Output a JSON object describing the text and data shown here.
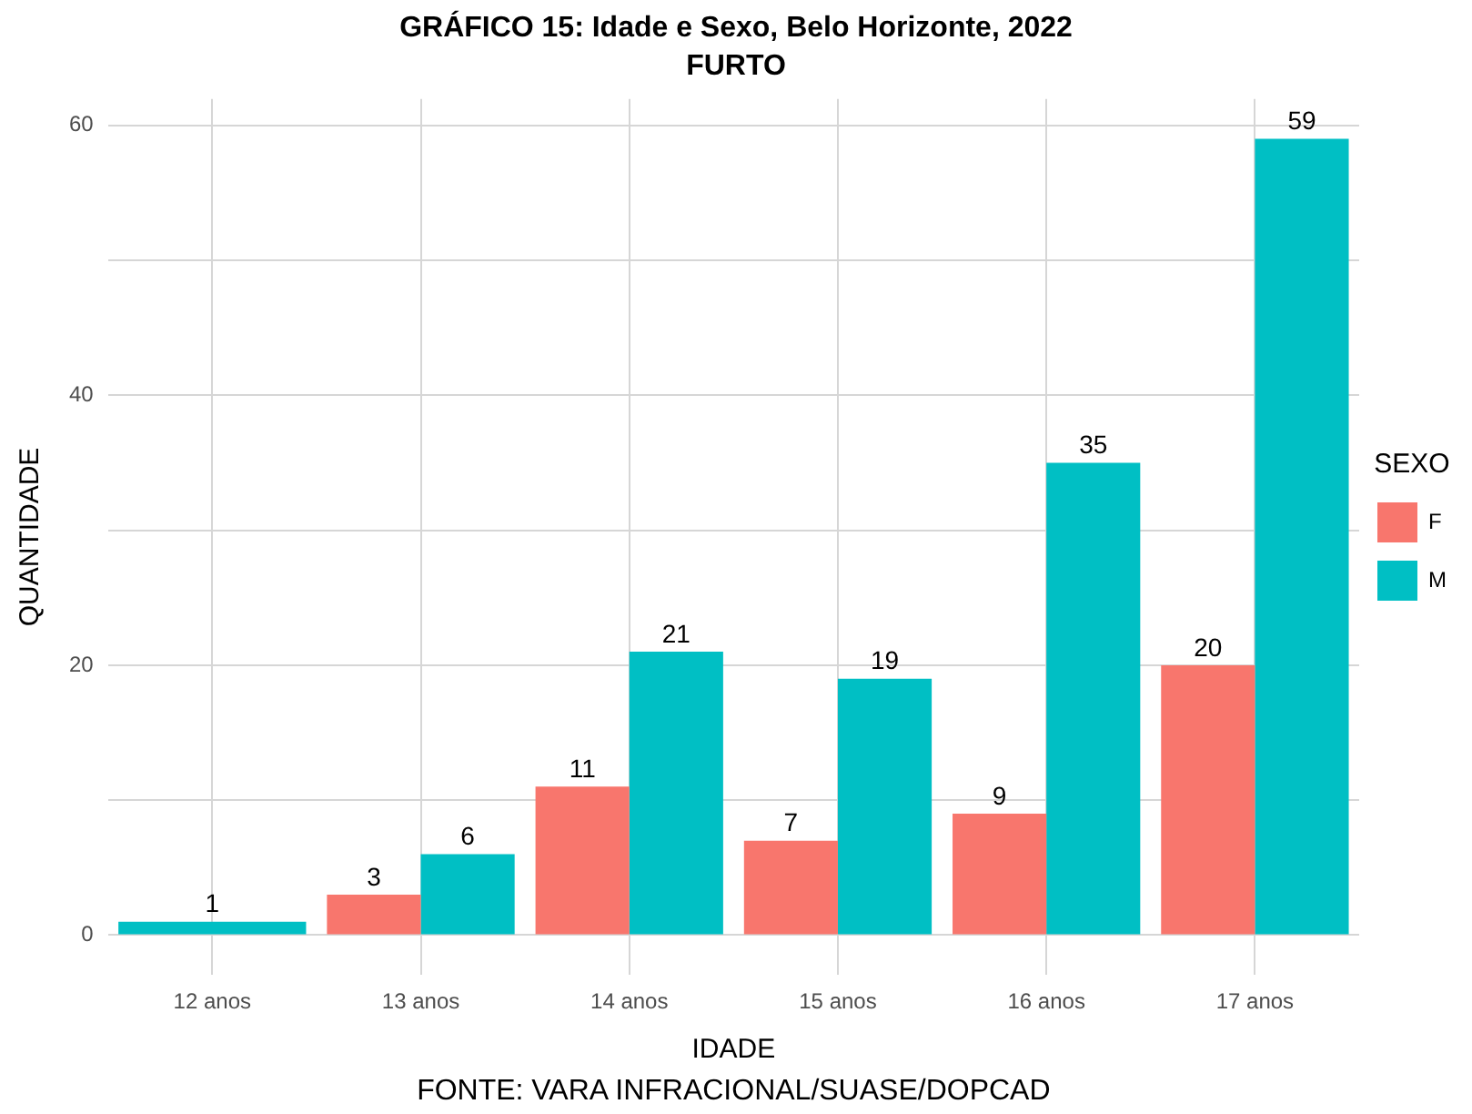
{
  "chart_data": {
    "type": "bar",
    "title": "GRÁFICO 15: Idade e Sexo, Belo Horizonte, 2022",
    "subtitle": "FURTO",
    "xlabel": "IDADE",
    "ylabel": "QUANTIDADE",
    "legend_title": "SEXO",
    "annotations": [
      "FONTE: VARA INFRACIONAL/SUASE/DOPCAD"
    ],
    "categories": [
      "12 anos",
      "13 anos",
      "14 anos",
      "15 anos",
      "16 anos",
      "17 anos"
    ],
    "series": [
      {
        "name": "F",
        "color": "#f8766d",
        "values": [
          null,
          3,
          11,
          7,
          9,
          20
        ]
      },
      {
        "name": "M",
        "color": "#00bfc4",
        "values": [
          1,
          6,
          21,
          19,
          35,
          59
        ]
      }
    ],
    "ylim": [
      -2.95,
      61.95
    ],
    "yticks": [
      0,
      {
        "value": 10,
        "label": null
      },
      20,
      {
        "value": 30,
        "label": null
      },
      40,
      {
        "value": 50,
        "label": null
      },
      60
    ],
    "grid": true,
    "legend": "right",
    "data_labels": true
  }
}
